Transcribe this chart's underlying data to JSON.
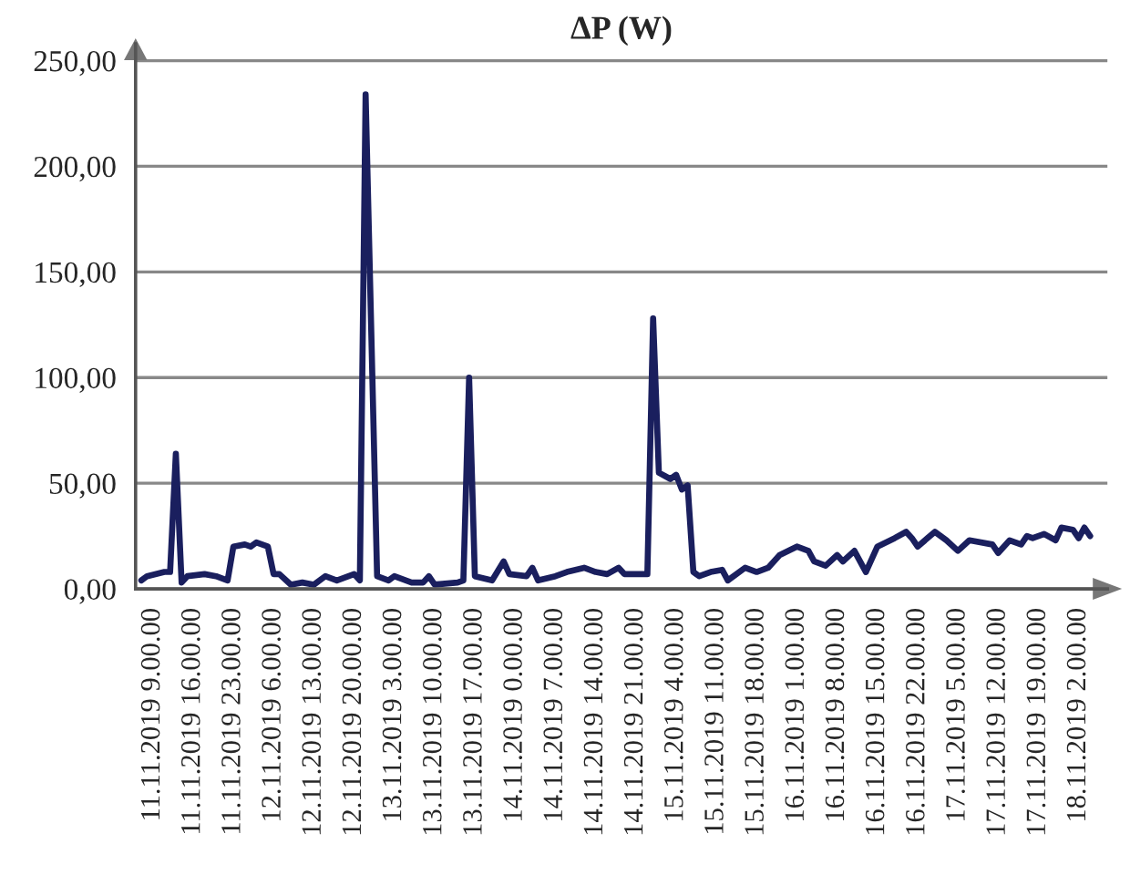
{
  "chart_data": {
    "type": "line",
    "title": "ΔP (W)",
    "x": [
      "2019-11-11T07:00",
      "2019-11-11T08:00",
      "2019-11-11T11:00",
      "2019-11-11T12:00",
      "2019-11-11T13:00",
      "2019-11-11T14:00",
      "2019-11-11T15:00",
      "2019-11-11T18:00",
      "2019-11-11T20:00",
      "2019-11-11T22:00",
      "2019-11-11T23:00",
      "2019-11-12T01:00",
      "2019-11-12T02:00",
      "2019-11-12T03:00",
      "2019-11-12T05:00",
      "2019-11-12T06:00",
      "2019-11-12T07:00",
      "2019-11-12T09:00",
      "2019-11-12T11:00",
      "2019-11-12T13:00",
      "2019-11-12T15:00",
      "2019-11-12T17:00",
      "2019-11-12T20:00",
      "2019-11-12T21:00",
      "2019-11-12T22:00",
      "2019-11-13T00:00",
      "2019-11-13T02:00",
      "2019-11-13T03:00",
      "2019-11-13T06:00",
      "2019-11-13T08:00",
      "2019-11-13T09:00",
      "2019-11-13T10:00",
      "2019-11-13T14:00",
      "2019-11-13T15:00",
      "2019-11-13T16:00",
      "2019-11-13T17:00",
      "2019-11-13T20:00",
      "2019-11-13T22:00",
      "2019-11-13T23:00",
      "2019-11-14T02:00",
      "2019-11-14T03:00",
      "2019-11-14T04:00",
      "2019-11-14T07:00",
      "2019-11-14T09:00",
      "2019-11-14T12:00",
      "2019-11-14T14:00",
      "2019-11-14T16:00",
      "2019-11-14T18:00",
      "2019-11-14T19:00",
      "2019-11-14T22:00",
      "2019-11-14T23:00",
      "2019-11-15T00:00",
      "2019-11-15T01:00",
      "2019-11-15T03:00",
      "2019-11-15T04:00",
      "2019-11-15T05:00",
      "2019-11-15T06:00",
      "2019-11-15T07:00",
      "2019-11-15T08:00",
      "2019-11-15T10:00",
      "2019-11-15T12:00",
      "2019-11-15T13:00",
      "2019-11-15T16:00",
      "2019-11-15T18:00",
      "2019-11-15T20:00",
      "2019-11-15T22:00",
      "2019-11-16T01:00",
      "2019-11-16T03:00",
      "2019-11-16T04:00",
      "2019-11-16T06:00",
      "2019-11-16T08:00",
      "2019-11-16T09:00",
      "2019-11-16T11:00",
      "2019-11-16T13:00",
      "2019-11-16T15:00",
      "2019-11-16T18:00",
      "2019-11-16T20:00",
      "2019-11-16T21:00",
      "2019-11-16T22:00",
      "2019-11-17T01:00",
      "2019-11-17T03:00",
      "2019-11-17T05:00",
      "2019-11-17T07:00",
      "2019-11-17T11:00",
      "2019-11-17T12:00",
      "2019-11-17T14:00",
      "2019-11-17T16:00",
      "2019-11-17T17:00",
      "2019-11-17T18:00",
      "2019-11-17T20:00",
      "2019-11-17T22:00",
      "2019-11-17T23:00",
      "2019-11-18T01:00",
      "2019-11-18T02:00",
      "2019-11-18T03:00",
      "2019-11-18T04:00"
    ],
    "series": [
      {
        "color": "#1a1f5e",
        "values": [
          4,
          6,
          8,
          8,
          64,
          3,
          6,
          7,
          6,
          4,
          20,
          21,
          20,
          22,
          20,
          7,
          7,
          2,
          3,
          2,
          6,
          4,
          7,
          4,
          234,
          6,
          4,
          6,
          3,
          3,
          6,
          2,
          3,
          4,
          100,
          6,
          4,
          13,
          7,
          6,
          10,
          4,
          6,
          8,
          10,
          8,
          7,
          10,
          7,
          7,
          7,
          128,
          55,
          52,
          54,
          47,
          49,
          8,
          6,
          8,
          9,
          4,
          10,
          8,
          10,
          16,
          20,
          18,
          13,
          11,
          16,
          13,
          18,
          8,
          20,
          24,
          27,
          24,
          20,
          27,
          23,
          18,
          23,
          21,
          17,
          23,
          21,
          25,
          24,
          26,
          23,
          29,
          28,
          24,
          29,
          25
        ]
      }
    ],
    "xlim": [
      "2019-11-11T06:00",
      "2019-11-18T07:00"
    ],
    "xticks": [
      {
        "value": "2019-11-11T09:00",
        "label": "11.11.2019 9.00.00"
      },
      {
        "value": "2019-11-11T16:00",
        "label": "11.11.2019 16.00.00"
      },
      {
        "value": "2019-11-11T23:00",
        "label": "11.11.2019 23.00.00"
      },
      {
        "value": "2019-11-12T06:00",
        "label": "12.11.2019 6.00.00"
      },
      {
        "value": "2019-11-12T13:00",
        "label": "12.11.2019 13.00.00"
      },
      {
        "value": "2019-11-12T20:00",
        "label": "12.11.2019 20.00.00"
      },
      {
        "value": "2019-11-13T03:00",
        "label": "13.11.2019 3.00.00"
      },
      {
        "value": "2019-11-13T10:00",
        "label": "13.11.2019 10.00.00"
      },
      {
        "value": "2019-11-13T17:00",
        "label": "13.11.2019 17.00.00"
      },
      {
        "value": "2019-11-14T00:00",
        "label": "14.11.2019 0.00.00"
      },
      {
        "value": "2019-11-14T07:00",
        "label": "14.11.2019 7.00.00"
      },
      {
        "value": "2019-11-14T14:00",
        "label": "14.11.2019 14.00.00"
      },
      {
        "value": "2019-11-14T21:00",
        "label": "14.11.2019 21.00.00"
      },
      {
        "value": "2019-11-15T04:00",
        "label": "15.11.2019 4.00.00"
      },
      {
        "value": "2019-11-15T11:00",
        "label": "15.11.2019 11.00.00"
      },
      {
        "value": "2019-11-15T18:00",
        "label": "15.11.2019 18.00.00"
      },
      {
        "value": "2019-11-16T01:00",
        "label": "16.11.2019 1.00.00"
      },
      {
        "value": "2019-11-16T08:00",
        "label": "16.11.2019 8.00.00"
      },
      {
        "value": "2019-11-16T15:00",
        "label": "16.11.2019 15.00.00"
      },
      {
        "value": "2019-11-16T22:00",
        "label": "16.11.2019 22.00.00"
      },
      {
        "value": "2019-11-17T05:00",
        "label": "17.11.2019 5.00.00"
      },
      {
        "value": "2019-11-17T12:00",
        "label": "17.11.2019 12.00.00"
      },
      {
        "value": "2019-11-17T19:00",
        "label": "17.11.2019 19.00.00"
      },
      {
        "value": "2019-11-18T02:00",
        "label": "18.11.2019 2.00.00"
      }
    ],
    "ylim": [
      0,
      258
    ],
    "yticks": [
      {
        "value": 0,
        "label": "0,00"
      },
      {
        "value": 50,
        "label": "50,00"
      },
      {
        "value": 100,
        "label": "100,00"
      },
      {
        "value": 150,
        "label": "150,00"
      },
      {
        "value": 200,
        "label": "200,00"
      },
      {
        "value": 250,
        "label": "250,00"
      }
    ],
    "grid": "y",
    "legend": false,
    "marker": "none",
    "line_style": "solid"
  }
}
